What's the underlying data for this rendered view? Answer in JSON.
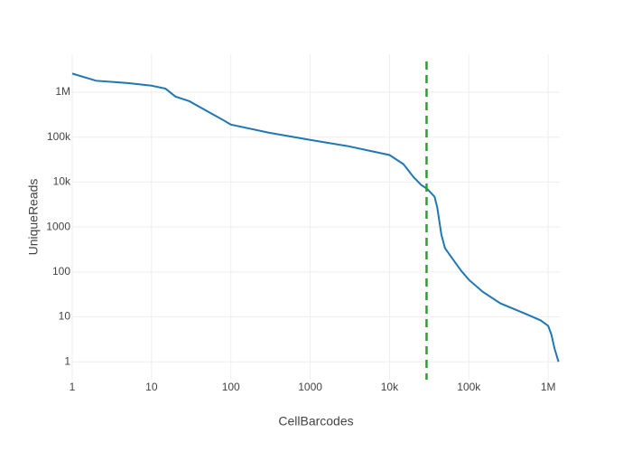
{
  "chart_data": {
    "type": "line",
    "x_label": "CellBarcodes",
    "y_label": "UniqueReads",
    "x": [
      1,
      2,
      5,
      10,
      15,
      20,
      30,
      50,
      80,
      100,
      300,
      1000,
      3000,
      10000,
      15000,
      20000,
      25000,
      30000,
      37000,
      40000,
      45000,
      50000,
      60000,
      80000,
      100000,
      150000,
      250000,
      500000,
      800000,
      1000000,
      1100000,
      1200000,
      1350000
    ],
    "values": [
      2600000,
      1800000,
      1600000,
      1400000,
      1200000,
      800000,
      630000,
      380000,
      240000,
      190000,
      126000,
      87000,
      63000,
      40000,
      25000,
      13000,
      8700,
      7000,
      4700,
      2700,
      680,
      340,
      215,
      106,
      67,
      36,
      20,
      12,
      8.4,
      6.3,
      4,
      2,
      1
    ],
    "color": "#1f77b4",
    "vline": {
      "x": 29300,
      "color": "#2ca02c"
    },
    "xlog": true,
    "ylog": true,
    "grid": true,
    "xlim": [
      1,
      1400000
    ],
    "ylim": [
      0.4,
      7000000
    ],
    "xticks": [
      1,
      10,
      100,
      1000,
      {
        "value": 10000,
        "label": "10k"
      },
      {
        "value": 100000,
        "label": "100k"
      },
      {
        "value": 1000000,
        "label": "1M"
      }
    ],
    "yticks": [
      1,
      10,
      100,
      1000,
      {
        "value": 10000,
        "label": "10k"
      },
      {
        "value": 100000,
        "label": "100k"
      },
      {
        "value": 1000000,
        "label": "1M"
      }
    ]
  }
}
